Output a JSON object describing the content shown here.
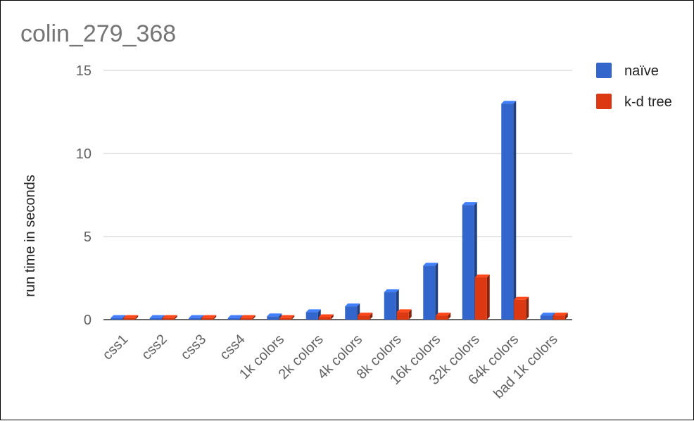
{
  "chart_data": {
    "type": "bar",
    "title": "colin_279_368",
    "xlabel": "",
    "ylabel": "run time in seconds",
    "ylim": [
      0,
      15
    ],
    "yticks": [
      0,
      5,
      10,
      15
    ],
    "grid": true,
    "legend_position": "right",
    "categories": [
      "css1",
      "css2",
      "css3",
      "css4",
      "1k colors",
      "2k colors",
      "4k colors",
      "8k colors",
      "16k colors",
      "32k colors",
      "64k colors",
      "bad 1k colors"
    ],
    "series": [
      {
        "name": "naïve",
        "color": "#3366cc",
        "values": [
          0.1,
          0.1,
          0.1,
          0.1,
          0.2,
          0.45,
          0.8,
          1.65,
          3.25,
          6.9,
          13.0,
          0.25
        ]
      },
      {
        "name": "k-d tree",
        "color": "#dc3912",
        "values": [
          0.1,
          0.1,
          0.1,
          0.1,
          0.1,
          0.15,
          0.25,
          0.45,
          0.25,
          2.55,
          1.2,
          0.25
        ]
      }
    ]
  }
}
